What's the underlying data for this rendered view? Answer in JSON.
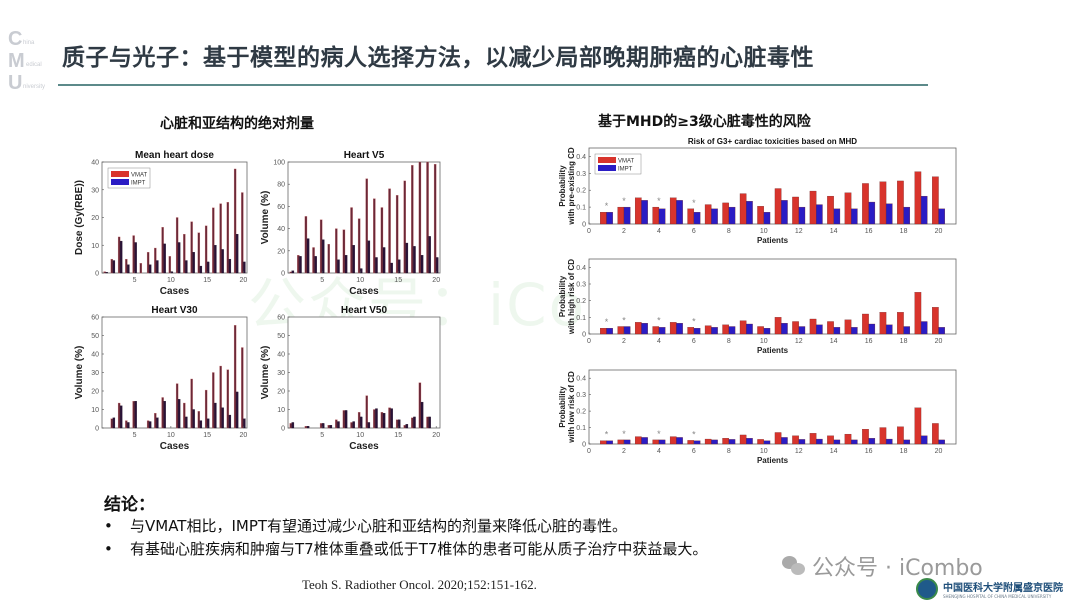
{
  "logo": {
    "letters": [
      "C",
      "M",
      "U"
    ],
    "words": [
      "hina",
      "edical",
      "niversity"
    ]
  },
  "title": "质子与光子：基于模型的病人选择方法，以减少局部晚期肺癌的心脏毒性",
  "sections": {
    "left": "心脏和亚结构的绝对剂量",
    "right": "基于MHD的≥3级心脏毒性的风险"
  },
  "watermark": "公众号：iCombo",
  "colors": {
    "vmat": "#d8342c",
    "impt": "#2a1cc4",
    "vmat_left": "#6a2838",
    "impt_left": "#2a1238",
    "title_rule": "#5c8a8a"
  },
  "chart_data": [
    {
      "type": "bar",
      "title": "Mean heart dose",
      "xlabel": "Cases",
      "ylabel": "Dose (Gy(RBE))",
      "xlim": [
        0.5,
        20.5
      ],
      "ylim": [
        0,
        40
      ],
      "xticks": [
        5,
        10,
        15,
        20
      ],
      "yticks": [
        0,
        10,
        20,
        30,
        40
      ],
      "legend": "top-left",
      "categories": [
        1,
        2,
        3,
        4,
        5,
        6,
        7,
        8,
        9,
        10,
        11,
        12,
        13,
        14,
        15,
        16,
        17,
        18,
        19,
        20
      ],
      "series": [
        {
          "name": "VMAT",
          "values": [
            0.5,
            5,
            13,
            5,
            13.5,
            3.5,
            7.5,
            9,
            16.5,
            6,
            20,
            14,
            18.5,
            14.5,
            17,
            23.5,
            25,
            25.5,
            37.5,
            29
          ]
        },
        {
          "name": "IMPT",
          "values": [
            0.3,
            4.5,
            11.5,
            3,
            11,
            0,
            3,
            4.5,
            10.5,
            0.5,
            11,
            4.5,
            7.5,
            2.5,
            4,
            10,
            8.5,
            5,
            14,
            4
          ]
        }
      ]
    },
    {
      "type": "bar",
      "title": "Heart V5",
      "xlabel": "Cases",
      "ylabel": "Volume (%)",
      "xlim": [
        0.5,
        20.5
      ],
      "ylim": [
        0,
        100
      ],
      "xticks": [
        5,
        10,
        15,
        20
      ],
      "yticks": [
        0,
        20,
        40,
        60,
        80,
        100
      ],
      "categories": [
        1,
        2,
        3,
        4,
        5,
        6,
        7,
        8,
        9,
        10,
        11,
        12,
        13,
        14,
        15,
        16,
        17,
        18,
        19,
        20
      ],
      "series": [
        {
          "name": "VMAT",
          "values": [
            1,
            16,
            51,
            23,
            48,
            26,
            40,
            39,
            59,
            49,
            85,
            67,
            59,
            76,
            70,
            83,
            97,
            100,
            100,
            98
          ]
        },
        {
          "name": "IMPT",
          "values": [
            2,
            15,
            31,
            15,
            30,
            0,
            12,
            16,
            25,
            4,
            29,
            14,
            23,
            9,
            12,
            27,
            24,
            16,
            33,
            14
          ]
        }
      ]
    },
    {
      "type": "bar",
      "title": "Heart V30",
      "xlabel": "Cases",
      "ylabel": "Volume (%)",
      "xlim": [
        0.5,
        20.5
      ],
      "ylim": [
        0,
        60
      ],
      "xticks": [
        5,
        10,
        15,
        20
      ],
      "yticks": [
        0,
        10,
        20,
        30,
        40,
        50,
        60
      ],
      "categories": [
        1,
        2,
        3,
        4,
        5,
        6,
        7,
        8,
        9,
        10,
        11,
        12,
        13,
        14,
        15,
        16,
        17,
        18,
        19,
        20
      ],
      "series": [
        {
          "name": "VMAT",
          "values": [
            0,
            5,
            13.5,
            4,
            14.5,
            0,
            4,
            8,
            16.5,
            0,
            24,
            13.5,
            26.5,
            9,
            20.5,
            30,
            33.5,
            31.5,
            55.5,
            43.5
          ]
        },
        {
          "name": "IMPT",
          "values": [
            0,
            5.5,
            12,
            3,
            14.5,
            0,
            3.5,
            5.5,
            14.5,
            0,
            15.5,
            6,
            10,
            4,
            5,
            13.5,
            11,
            7,
            19.5,
            5
          ]
        }
      ]
    },
    {
      "type": "bar",
      "title": "Heart V50",
      "xlabel": "Cases",
      "ylabel": "Volume (%)",
      "xlim": [
        0.5,
        20.5
      ],
      "ylim": [
        0,
        60
      ],
      "xticks": [
        5,
        10,
        15,
        20
      ],
      "yticks": [
        0,
        10,
        20,
        30,
        40,
        50,
        60
      ],
      "categories": [
        1,
        2,
        3,
        4,
        5,
        6,
        7,
        8,
        9,
        10,
        11,
        12,
        13,
        14,
        15,
        16,
        17,
        18,
        19,
        20
      ],
      "series": [
        {
          "name": "VMAT",
          "values": [
            2.5,
            0,
            1,
            0,
            2.5,
            1.5,
            4.5,
            9.5,
            3,
            8.5,
            17.5,
            10,
            8.5,
            11,
            4.5,
            1.5,
            5.5,
            24.5,
            6,
            0
          ]
        },
        {
          "name": "IMPT",
          "values": [
            3,
            0,
            1,
            0,
            2.5,
            1.5,
            3.5,
            9.5,
            3.5,
            6,
            3,
            10.5,
            8,
            10.5,
            4.5,
            2,
            6,
            14,
            6,
            0
          ]
        }
      ]
    },
    {
      "type": "bar",
      "title": "Risk of G3+ cardiac toxicities based on MHD",
      "xlabel": "Patients",
      "ylabel": [
        "Probability",
        "with pre-existing CD"
      ],
      "xlim": [
        0,
        21
      ],
      "ylim": [
        0,
        0.45
      ],
      "xticks": [
        0,
        2,
        4,
        6,
        8,
        10,
        12,
        14,
        16,
        18,
        20
      ],
      "yticks": [
        0,
        0.1,
        0.2,
        0.3,
        0.4
      ],
      "legend": "top-left",
      "markers": {
        "symbol": "*",
        "patients": [
          1,
          2,
          4,
          6
        ]
      },
      "categories": [
        1,
        2,
        3,
        4,
        5,
        6,
        7,
        8,
        9,
        10,
        11,
        12,
        13,
        14,
        15,
        16,
        17,
        18,
        19,
        20
      ],
      "series": [
        {
          "name": "VMAT",
          "values": [
            0.07,
            0.1,
            0.155,
            0.1,
            0.155,
            0.09,
            0.115,
            0.125,
            0.18,
            0.105,
            0.21,
            0.16,
            0.195,
            0.165,
            0.185,
            0.24,
            0.25,
            0.255,
            0.31,
            0.28
          ]
        },
        {
          "name": "IMPT",
          "values": [
            0.07,
            0.1,
            0.14,
            0.09,
            0.14,
            0.07,
            0.09,
            0.1,
            0.135,
            0.07,
            0.14,
            0.1,
            0.115,
            0.09,
            0.09,
            0.13,
            0.12,
            0.1,
            0.165,
            0.09
          ]
        }
      ]
    },
    {
      "type": "bar",
      "title": "",
      "xlabel": "Patients",
      "ylabel": [
        "Probability",
        "with high risk of CD"
      ],
      "xlim": [
        0,
        21
      ],
      "ylim": [
        0,
        0.45
      ],
      "xticks": [
        0,
        2,
        4,
        6,
        8,
        10,
        12,
        14,
        16,
        18,
        20
      ],
      "yticks": [
        0,
        0.1,
        0.2,
        0.3,
        0.4
      ],
      "markers": {
        "symbol": "*",
        "patients": [
          1,
          2,
          4,
          6
        ]
      },
      "categories": [
        1,
        2,
        3,
        4,
        5,
        6,
        7,
        8,
        9,
        10,
        11,
        12,
        13,
        14,
        15,
        16,
        17,
        18,
        19,
        20
      ],
      "series": [
        {
          "name": "VMAT",
          "values": [
            0.035,
            0.045,
            0.07,
            0.045,
            0.07,
            0.04,
            0.05,
            0.055,
            0.08,
            0.045,
            0.1,
            0.075,
            0.09,
            0.075,
            0.085,
            0.12,
            0.13,
            0.13,
            0.25,
            0.16
          ]
        },
        {
          "name": "IMPT",
          "values": [
            0.035,
            0.045,
            0.065,
            0.04,
            0.065,
            0.035,
            0.04,
            0.045,
            0.06,
            0.035,
            0.065,
            0.045,
            0.055,
            0.04,
            0.04,
            0.06,
            0.055,
            0.045,
            0.075,
            0.04
          ]
        }
      ]
    },
    {
      "type": "bar",
      "title": "",
      "xlabel": "Patients",
      "ylabel": [
        "Probability",
        "with low risk of CD"
      ],
      "xlim": [
        0,
        21
      ],
      "ylim": [
        0,
        0.45
      ],
      "xticks": [
        0,
        2,
        4,
        6,
        8,
        10,
        12,
        14,
        16,
        18,
        20
      ],
      "yticks": [
        0,
        0.1,
        0.2,
        0.3,
        0.4
      ],
      "markers": {
        "symbol": "*",
        "patients": [
          1,
          2,
          4,
          6
        ]
      },
      "categories": [
        1,
        2,
        3,
        4,
        5,
        6,
        7,
        8,
        9,
        10,
        11,
        12,
        13,
        14,
        15,
        16,
        17,
        18,
        19,
        20
      ],
      "series": [
        {
          "name": "VMAT",
          "values": [
            0.02,
            0.025,
            0.045,
            0.025,
            0.045,
            0.022,
            0.03,
            0.035,
            0.055,
            0.028,
            0.07,
            0.05,
            0.065,
            0.05,
            0.06,
            0.09,
            0.1,
            0.105,
            0.22,
            0.125
          ]
        },
        {
          "name": "IMPT",
          "values": [
            0.02,
            0.025,
            0.04,
            0.025,
            0.04,
            0.02,
            0.025,
            0.028,
            0.035,
            0.02,
            0.04,
            0.028,
            0.03,
            0.025,
            0.025,
            0.035,
            0.03,
            0.025,
            0.05,
            0.025
          ]
        }
      ]
    }
  ],
  "conclusion": {
    "title": "结论：",
    "items": [
      "与VMAT相比，IMPT有望通过减少心脏和亚结构的剂量来降低心脏的毒性。",
      "有基础心脏疾病和肿瘤与T7椎体重叠或低于T7椎体的患者可能从质子治疗中获益最大。"
    ]
  },
  "citation": "Teoh S. Radiother Oncol. 2020;152:151-162.",
  "footer": {
    "wechat": "公众号 · iCombo",
    "hospital": "中国医科大学附属盛京医院",
    "hospital_en": "SHENGJING HOSPITAL OF CHINA MEDICAL UNIVERSITY"
  }
}
